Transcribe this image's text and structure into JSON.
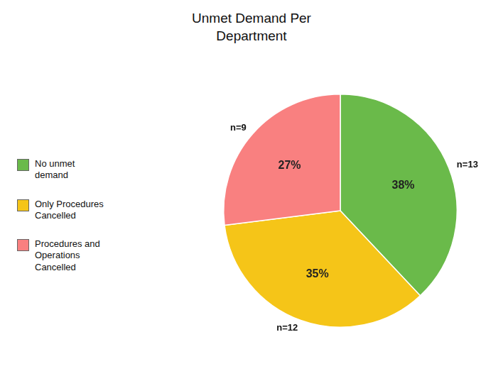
{
  "chart_data": {
    "type": "pie",
    "title": "Unmet Demand Per\nDepartment",
    "categories": [
      "No unmet\ndemand",
      "Only Procedures\nCancelled",
      "Procedures and\nOperations\nCancelled"
    ],
    "values": [
      38,
      35,
      27
    ],
    "value_labels": [
      "38%",
      "35%",
      "27%"
    ],
    "data_labels": true,
    "colors": [
      "#6aba4a",
      "#f5c518",
      "#f98080"
    ],
    "counts": [
      13,
      12,
      9
    ],
    "count_labels": [
      "n=13",
      "n=12",
      "n=9"
    ],
    "legend": "left"
  }
}
